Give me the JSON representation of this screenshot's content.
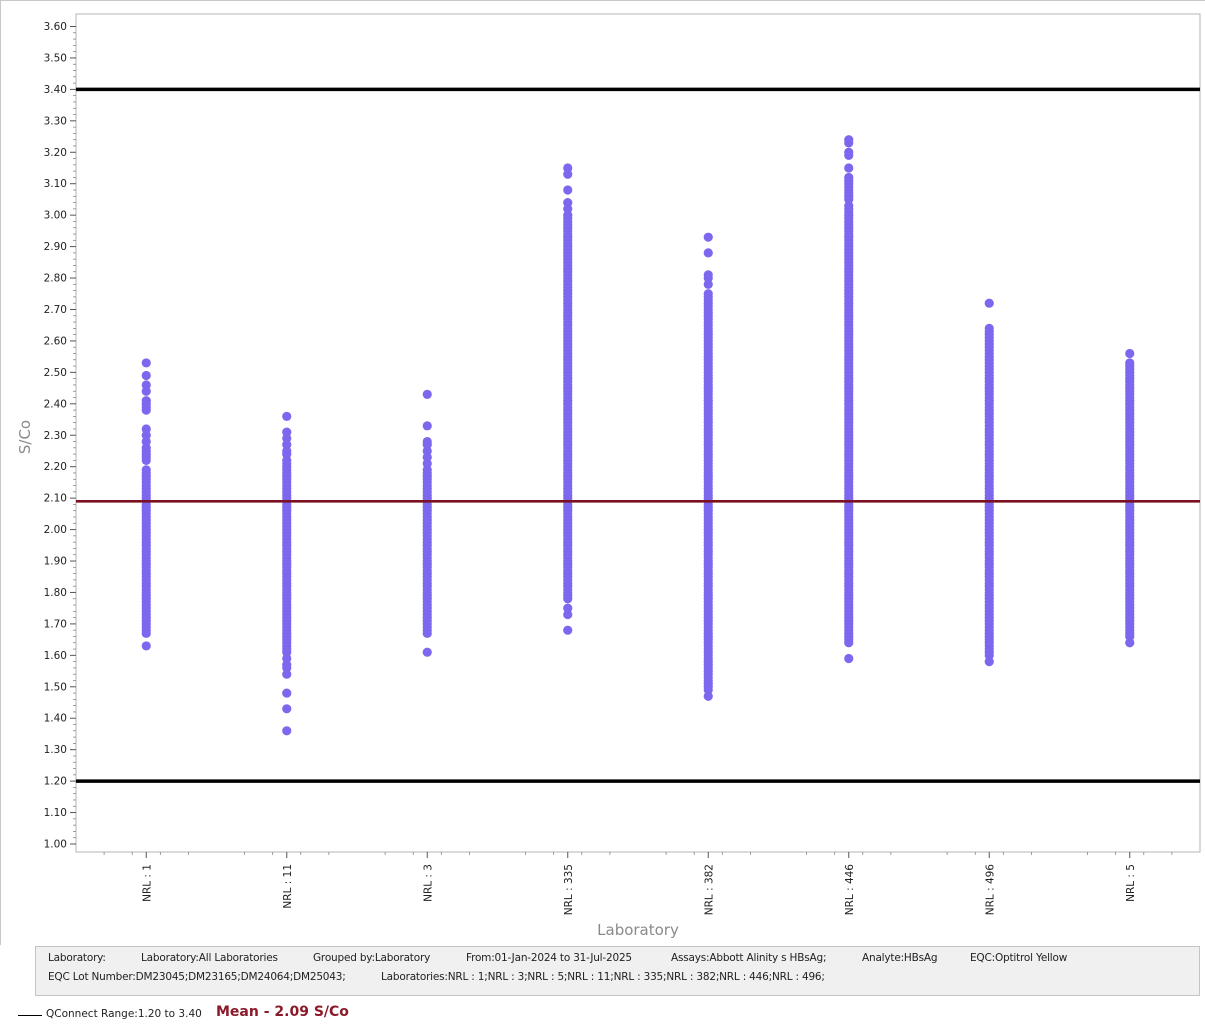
{
  "chart_data": {
    "type": "scatter",
    "xlabel": "Laboratory",
    "ylabel": "S/Co",
    "ylim": [
      1.0,
      3.6
    ],
    "y_tick_step": 0.1,
    "categories": [
      "NRL : 1",
      "NRL : 11",
      "NRL : 3",
      "NRL : 335",
      "NRL : 382",
      "NRL : 446",
      "NRL : 496",
      "NRL : 5"
    ],
    "series": [
      {
        "color": "#7b68ee",
        "points": [
          {
            "category": "NRL : 1",
            "values": [
              1.63,
              1.67,
              1.68,
              1.69,
              1.7,
              1.71,
              1.72,
              1.73,
              1.74,
              1.75,
              1.76,
              1.77,
              1.78,
              1.79,
              1.8,
              1.81,
              1.82,
              1.83,
              1.84,
              1.85,
              1.86,
              1.87,
              1.88,
              1.89,
              1.9,
              1.91,
              1.92,
              1.93,
              1.94,
              1.95,
              1.96,
              1.97,
              1.98,
              1.99,
              2.0,
              2.01,
              2.02,
              2.03,
              2.04,
              2.05,
              2.06,
              2.07,
              2.08,
              2.09,
              2.1,
              2.11,
              2.12,
              2.13,
              2.14,
              2.15,
              2.16,
              2.17,
              2.18,
              2.19,
              2.22,
              2.23,
              2.24,
              2.25,
              2.26,
              2.28,
              2.3,
              2.32,
              2.38,
              2.39,
              2.4,
              2.41,
              2.44,
              2.46,
              2.49,
              2.53
            ]
          },
          {
            "category": "NRL : 11",
            "values": [
              1.36,
              1.43,
              1.48,
              1.54,
              1.56,
              1.57,
              1.59,
              1.61,
              1.62,
              1.63,
              1.64,
              1.65,
              1.66,
              1.67,
              1.68,
              1.69,
              1.7,
              1.71,
              1.72,
              1.73,
              1.74,
              1.75,
              1.76,
              1.77,
              1.78,
              1.79,
              1.8,
              1.81,
              1.82,
              1.83,
              1.84,
              1.85,
              1.86,
              1.87,
              1.88,
              1.89,
              1.9,
              1.91,
              1.92,
              1.93,
              1.94,
              1.95,
              1.96,
              1.97,
              1.98,
              1.99,
              2.0,
              2.01,
              2.02,
              2.03,
              2.04,
              2.05,
              2.06,
              2.07,
              2.08,
              2.09,
              2.1,
              2.11,
              2.12,
              2.13,
              2.14,
              2.15,
              2.16,
              2.17,
              2.18,
              2.19,
              2.2,
              2.21,
              2.22,
              2.24,
              2.25,
              2.27,
              2.29,
              2.31,
              2.36
            ]
          },
          {
            "category": "NRL : 3",
            "values": [
              1.61,
              1.67,
              1.68,
              1.69,
              1.7,
              1.71,
              1.72,
              1.73,
              1.74,
              1.75,
              1.76,
              1.77,
              1.78,
              1.79,
              1.8,
              1.81,
              1.82,
              1.83,
              1.84,
              1.85,
              1.86,
              1.87,
              1.88,
              1.89,
              1.9,
              1.91,
              1.92,
              1.93,
              1.94,
              1.95,
              1.96,
              1.97,
              1.98,
              1.99,
              2.0,
              2.01,
              2.02,
              2.03,
              2.04,
              2.05,
              2.06,
              2.07,
              2.08,
              2.09,
              2.1,
              2.11,
              2.12,
              2.13,
              2.14,
              2.15,
              2.16,
              2.17,
              2.18,
              2.19,
              2.21,
              2.23,
              2.25,
              2.27,
              2.28,
              2.33,
              2.43
            ]
          },
          {
            "category": "NRL : 335",
            "values": [
              1.68,
              1.73,
              1.75,
              1.78,
              1.79,
              1.8,
              1.81,
              1.82,
              1.83,
              1.84,
              1.85,
              1.86,
              1.87,
              1.88,
              1.89,
              1.9,
              1.91,
              1.92,
              1.93,
              1.94,
              1.95,
              1.96,
              1.97,
              1.98,
              1.99,
              2.0,
              2.01,
              2.02,
              2.03,
              2.04,
              2.05,
              2.06,
              2.07,
              2.08,
              2.09,
              2.1,
              2.11,
              2.12,
              2.13,
              2.14,
              2.15,
              2.16,
              2.17,
              2.18,
              2.19,
              2.2,
              2.21,
              2.22,
              2.23,
              2.24,
              2.25,
              2.26,
              2.27,
              2.28,
              2.29,
              2.3,
              2.31,
              2.32,
              2.33,
              2.34,
              2.35,
              2.36,
              2.37,
              2.38,
              2.39,
              2.4,
              2.41,
              2.42,
              2.43,
              2.44,
              2.45,
              2.46,
              2.47,
              2.48,
              2.49,
              2.5,
              2.51,
              2.52,
              2.53,
              2.54,
              2.55,
              2.56,
              2.57,
              2.58,
              2.59,
              2.6,
              2.61,
              2.62,
              2.63,
              2.64,
              2.65,
              2.66,
              2.67,
              2.68,
              2.69,
              2.7,
              2.71,
              2.72,
              2.73,
              2.74,
              2.75,
              2.76,
              2.77,
              2.78,
              2.79,
              2.8,
              2.81,
              2.82,
              2.83,
              2.84,
              2.85,
              2.86,
              2.87,
              2.88,
              2.89,
              2.9,
              2.91,
              2.92,
              2.93,
              2.94,
              2.95,
              2.96,
              2.97,
              2.98,
              2.99,
              3.0,
              3.02,
              3.04,
              3.08,
              3.13,
              3.15
            ]
          },
          {
            "category": "NRL : 382",
            "values": [
              1.47,
              1.49,
              1.5,
              1.51,
              1.52,
              1.53,
              1.54,
              1.55,
              1.56,
              1.57,
              1.58,
              1.59,
              1.6,
              1.61,
              1.62,
              1.63,
              1.64,
              1.65,
              1.66,
              1.67,
              1.68,
              1.69,
              1.7,
              1.71,
              1.72,
              1.73,
              1.74,
              1.75,
              1.76,
              1.77,
              1.78,
              1.79,
              1.8,
              1.81,
              1.82,
              1.83,
              1.84,
              1.85,
              1.86,
              1.87,
              1.88,
              1.89,
              1.9,
              1.91,
              1.92,
              1.93,
              1.94,
              1.95,
              1.96,
              1.97,
              1.98,
              1.99,
              2.0,
              2.01,
              2.02,
              2.03,
              2.04,
              2.05,
              2.06,
              2.07,
              2.08,
              2.09,
              2.1,
              2.11,
              2.12,
              2.13,
              2.14,
              2.15,
              2.16,
              2.17,
              2.18,
              2.19,
              2.2,
              2.21,
              2.22,
              2.23,
              2.24,
              2.25,
              2.26,
              2.27,
              2.28,
              2.29,
              2.3,
              2.31,
              2.32,
              2.33,
              2.34,
              2.35,
              2.36,
              2.37,
              2.38,
              2.39,
              2.4,
              2.41,
              2.42,
              2.43,
              2.44,
              2.45,
              2.46,
              2.47,
              2.48,
              2.49,
              2.5,
              2.51,
              2.52,
              2.53,
              2.54,
              2.55,
              2.56,
              2.57,
              2.58,
              2.59,
              2.6,
              2.61,
              2.62,
              2.63,
              2.64,
              2.65,
              2.66,
              2.67,
              2.68,
              2.69,
              2.7,
              2.71,
              2.72,
              2.73,
              2.74,
              2.75,
              2.78,
              2.8,
              2.81,
              2.88,
              2.93
            ]
          },
          {
            "category": "NRL : 446",
            "values": [
              1.59,
              1.64,
              1.65,
              1.66,
              1.67,
              1.68,
              1.69,
              1.7,
              1.71,
              1.72,
              1.73,
              1.74,
              1.75,
              1.76,
              1.77,
              1.78,
              1.79,
              1.8,
              1.81,
              1.82,
              1.83,
              1.84,
              1.85,
              1.86,
              1.87,
              1.88,
              1.89,
              1.9,
              1.91,
              1.92,
              1.93,
              1.94,
              1.95,
              1.96,
              1.97,
              1.98,
              1.99,
              2.0,
              2.01,
              2.02,
              2.03,
              2.04,
              2.05,
              2.06,
              2.07,
              2.08,
              2.09,
              2.1,
              2.11,
              2.12,
              2.13,
              2.14,
              2.15,
              2.16,
              2.17,
              2.18,
              2.19,
              2.2,
              2.21,
              2.22,
              2.23,
              2.24,
              2.25,
              2.26,
              2.27,
              2.28,
              2.29,
              2.3,
              2.31,
              2.32,
              2.33,
              2.34,
              2.35,
              2.36,
              2.37,
              2.38,
              2.39,
              2.4,
              2.41,
              2.42,
              2.43,
              2.44,
              2.45,
              2.46,
              2.47,
              2.48,
              2.49,
              2.5,
              2.51,
              2.52,
              2.53,
              2.54,
              2.55,
              2.56,
              2.57,
              2.58,
              2.59,
              2.6,
              2.61,
              2.62,
              2.63,
              2.64,
              2.65,
              2.66,
              2.67,
              2.68,
              2.69,
              2.7,
              2.71,
              2.72,
              2.73,
              2.74,
              2.75,
              2.76,
              2.77,
              2.78,
              2.79,
              2.8,
              2.81,
              2.82,
              2.83,
              2.84,
              2.85,
              2.86,
              2.87,
              2.88,
              2.89,
              2.9,
              2.91,
              2.92,
              2.93,
              2.94,
              2.95,
              2.96,
              2.97,
              2.98,
              2.99,
              3.0,
              3.01,
              3.02,
              3.03,
              3.05,
              3.06,
              3.07,
              3.08,
              3.09,
              3.1,
              3.11,
              3.12,
              3.15,
              3.19,
              3.2,
              3.23,
              3.24
            ]
          },
          {
            "category": "NRL : 496",
            "values": [
              1.58,
              1.6,
              1.61,
              1.62,
              1.63,
              1.64,
              1.65,
              1.66,
              1.67,
              1.68,
              1.69,
              1.7,
              1.71,
              1.72,
              1.73,
              1.74,
              1.75,
              1.76,
              1.77,
              1.78,
              1.79,
              1.8,
              1.81,
              1.82,
              1.83,
              1.84,
              1.85,
              1.86,
              1.87,
              1.88,
              1.89,
              1.9,
              1.91,
              1.92,
              1.93,
              1.94,
              1.95,
              1.96,
              1.97,
              1.98,
              1.99,
              2.0,
              2.01,
              2.02,
              2.03,
              2.04,
              2.05,
              2.06,
              2.07,
              2.08,
              2.09,
              2.1,
              2.11,
              2.12,
              2.13,
              2.14,
              2.15,
              2.16,
              2.17,
              2.18,
              2.19,
              2.2,
              2.21,
              2.22,
              2.23,
              2.24,
              2.25,
              2.26,
              2.27,
              2.28,
              2.29,
              2.3,
              2.31,
              2.32,
              2.33,
              2.34,
              2.35,
              2.36,
              2.37,
              2.38,
              2.39,
              2.4,
              2.41,
              2.42,
              2.43,
              2.44,
              2.45,
              2.46,
              2.47,
              2.48,
              2.49,
              2.5,
              2.51,
              2.52,
              2.53,
              2.54,
              2.55,
              2.56,
              2.57,
              2.58,
              2.59,
              2.6,
              2.61,
              2.62,
              2.63,
              2.64,
              2.72
            ]
          },
          {
            "category": "NRL : 5",
            "values": [
              1.64,
              1.66,
              1.67,
              1.68,
              1.69,
              1.7,
              1.71,
              1.72,
              1.73,
              1.74,
              1.75,
              1.76,
              1.77,
              1.78,
              1.79,
              1.8,
              1.81,
              1.82,
              1.83,
              1.84,
              1.85,
              1.86,
              1.87,
              1.88,
              1.89,
              1.9,
              1.91,
              1.92,
              1.93,
              1.94,
              1.95,
              1.96,
              1.97,
              1.98,
              1.99,
              2.0,
              2.01,
              2.02,
              2.03,
              2.04,
              2.05,
              2.06,
              2.07,
              2.08,
              2.09,
              2.1,
              2.11,
              2.12,
              2.13,
              2.14,
              2.15,
              2.16,
              2.17,
              2.18,
              2.19,
              2.2,
              2.21,
              2.22,
              2.23,
              2.24,
              2.25,
              2.26,
              2.27,
              2.28,
              2.29,
              2.3,
              2.31,
              2.32,
              2.33,
              2.34,
              2.35,
              2.36,
              2.37,
              2.38,
              2.39,
              2.4,
              2.41,
              2.42,
              2.43,
              2.44,
              2.45,
              2.46,
              2.47,
              2.48,
              2.49,
              2.5,
              2.51,
              2.52,
              2.53,
              2.56
            ]
          }
        ]
      }
    ],
    "reference_lines": [
      {
        "kind": "range-limit",
        "value": 3.4,
        "color": "#000000"
      },
      {
        "kind": "mean",
        "value": 2.09,
        "color": "#7b1020"
      },
      {
        "kind": "range-limit",
        "value": 1.2,
        "color": "#000000"
      }
    ],
    "grid": false
  },
  "footer": {
    "laboratory_label": "Laboratory:",
    "laboratory_value": "Laboratory:All Laboratories",
    "grouped_by": "Grouped by:Laboratory",
    "date_range": "From:01-Jan-2024 to 31-Jul-2025",
    "assays": "Assays:Abbott Alinity s HBsAg;",
    "analyte": "Analyte:HBsAg",
    "eqc": "EQC:Optitrol Yellow",
    "eqc_lot": "EQC Lot Number:DM23045;DM23165;DM24064;DM25043;",
    "laboratories": "Laboratories:NRL : 1;NRL : 3;NRL : 5;NRL : 11;NRL : 335;NRL : 382;NRL : 446;NRL : 496;"
  },
  "legend": {
    "range_text": "QConnect Range:1.20 to 3.40",
    "mean_text": "Mean - 2.09 S/Co"
  }
}
